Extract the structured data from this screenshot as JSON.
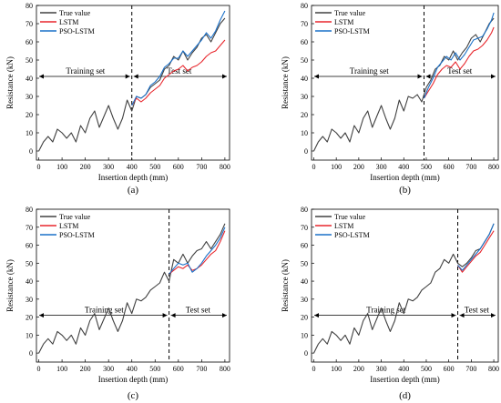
{
  "chart_data": [
    {
      "type": "line",
      "panel_label": "(a)",
      "xlabel": "Insertion depth (mm)",
      "ylabel": "Resistance (kN)",
      "xlim": [
        -10,
        820
      ],
      "ylim": [
        -5,
        80
      ],
      "xticks": [
        "0",
        "100",
        "200",
        "300",
        "400",
        "500",
        "600",
        "700",
        "800"
      ],
      "yticks": [
        "0",
        "10",
        "20",
        "30",
        "40",
        "50",
        "60",
        "70",
        "80"
      ],
      "split_x": 400,
      "annotations": {
        "train": "Training set",
        "test": "Test set",
        "arrow_y": 41
      },
      "legend": [
        "True value",
        "LSTM",
        "PSO-LSTM"
      ],
      "series": [
        {
          "name": "True value",
          "color": "#404040",
          "x": [
            0,
            20,
            40,
            60,
            80,
            100,
            120,
            140,
            160,
            180,
            200,
            220,
            240,
            260,
            280,
            300,
            320,
            340,
            360,
            380,
            400,
            420,
            440,
            460,
            480,
            500,
            520,
            540,
            560,
            580,
            600,
            620,
            640,
            660,
            680,
            700,
            720,
            740,
            760,
            780,
            800
          ],
          "y": [
            0,
            5,
            8,
            5,
            12,
            10,
            7,
            10,
            5,
            14,
            10,
            18,
            22,
            13,
            19,
            25,
            18,
            12,
            18,
            28,
            22,
            30,
            29,
            31,
            35,
            37,
            39,
            45,
            47,
            52,
            50,
            55,
            50,
            54,
            57,
            62,
            64,
            60,
            65,
            70,
            73
          ]
        },
        {
          "name": "LSTM",
          "color": "#e8272d",
          "x": [
            400,
            420,
            440,
            460,
            480,
            500,
            520,
            540,
            560,
            580,
            600,
            620,
            640,
            660,
            680,
            700,
            720,
            740,
            760,
            780,
            800
          ],
          "y": [
            25,
            29,
            27,
            29,
            32,
            34,
            36,
            40,
            42,
            44,
            45,
            47,
            44,
            46,
            47,
            49,
            52,
            54,
            55,
            58,
            61
          ]
        },
        {
          "name": "PSO-LSTM",
          "color": "#1a70c8",
          "x": [
            400,
            420,
            440,
            460,
            480,
            500,
            520,
            540,
            560,
            580,
            600,
            620,
            640,
            660,
            680,
            700,
            720,
            740,
            760,
            780,
            800
          ],
          "y": [
            25,
            30,
            29,
            31,
            36,
            38,
            41,
            46,
            48,
            51,
            51,
            55,
            52,
            55,
            58,
            61,
            65,
            62,
            66,
            72,
            77
          ]
        }
      ]
    },
    {
      "type": "line",
      "panel_label": "(b)",
      "xlabel": "Insertion depth (mm)",
      "ylabel": "Resistance (kN)",
      "xlim": [
        -10,
        820
      ],
      "ylim": [
        -5,
        80
      ],
      "xticks": [
        "0",
        "100",
        "200",
        "300",
        "400",
        "500",
        "600",
        "700",
        "800"
      ],
      "yticks": [
        "0",
        "10",
        "20",
        "30",
        "40",
        "50",
        "60",
        "70",
        "80"
      ],
      "split_x": 490,
      "annotations": {
        "train": "Training set",
        "test": "Test set",
        "arrow_y": 41
      },
      "legend": [
        "True value",
        "LSTM",
        "PSO-LSTM"
      ],
      "series": [
        {
          "name": "True value",
          "color": "#404040",
          "x": [
            0,
            20,
            40,
            60,
            80,
            100,
            120,
            140,
            160,
            180,
            200,
            220,
            240,
            260,
            280,
            300,
            320,
            340,
            360,
            380,
            400,
            420,
            440,
            460,
            480,
            500,
            520,
            540,
            560,
            580,
            600,
            620,
            640,
            660,
            680,
            700,
            720,
            740,
            760,
            780,
            800
          ],
          "y": [
            0,
            5,
            8,
            5,
            12,
            10,
            7,
            10,
            5,
            14,
            10,
            18,
            22,
            13,
            19,
            25,
            18,
            12,
            18,
            28,
            22,
            30,
            29,
            31,
            27,
            35,
            39,
            45,
            47,
            52,
            50,
            55,
            50,
            54,
            57,
            62,
            64,
            60,
            65,
            70,
            73
          ]
        },
        {
          "name": "LSTM",
          "color": "#e8272d",
          "x": [
            490,
            510,
            530,
            550,
            570,
            590,
            610,
            630,
            650,
            670,
            690,
            710,
            730,
            750,
            770,
            790,
            800
          ],
          "y": [
            29,
            33,
            37,
            42,
            45,
            47,
            46,
            49,
            45,
            48,
            52,
            55,
            56,
            58,
            61,
            65,
            68
          ]
        },
        {
          "name": "PSO-LSTM",
          "color": "#1a70c8",
          "x": [
            490,
            510,
            530,
            550,
            570,
            590,
            610,
            630,
            650,
            670,
            690,
            710,
            730,
            750,
            770,
            790,
            800
          ],
          "y": [
            29,
            35,
            40,
            46,
            49,
            52,
            50,
            54,
            50,
            53,
            57,
            61,
            62,
            63,
            67,
            72,
            76
          ]
        }
      ]
    },
    {
      "type": "line",
      "panel_label": "(c)",
      "xlabel": "Insertion depth (mm)",
      "ylabel": "Resistance (kN)",
      "xlim": [
        -10,
        820
      ],
      "ylim": [
        -5,
        80
      ],
      "xticks": [
        "0",
        "100",
        "200",
        "300",
        "400",
        "500",
        "600",
        "700",
        "800"
      ],
      "yticks": [
        "0",
        "10",
        "20",
        "30",
        "40",
        "50",
        "60",
        "70",
        "80"
      ],
      "split_x": 560,
      "annotations": {
        "train": "Training set",
        "test": "Test set",
        "arrow_y": 21
      },
      "legend": [
        "True value",
        "LSTM",
        "PSO-LSTM"
      ],
      "series": [
        {
          "name": "True value",
          "color": "#404040",
          "x": [
            0,
            20,
            40,
            60,
            80,
            100,
            120,
            140,
            160,
            180,
            200,
            220,
            240,
            260,
            280,
            300,
            320,
            340,
            360,
            380,
            400,
            420,
            440,
            460,
            480,
            500,
            520,
            540,
            560,
            580,
            600,
            620,
            640,
            660,
            680,
            700,
            720,
            740,
            760,
            780,
            800
          ],
          "y": [
            0,
            5,
            8,
            5,
            12,
            10,
            7,
            10,
            5,
            14,
            10,
            18,
            22,
            13,
            19,
            25,
            18,
            12,
            18,
            28,
            22,
            30,
            29,
            31,
            35,
            37,
            39,
            45,
            40,
            52,
            50,
            55,
            50,
            54,
            57,
            58,
            62,
            58,
            62,
            66,
            72
          ]
        },
        {
          "name": "LSTM",
          "color": "#e8272d",
          "x": [
            560,
            580,
            600,
            620,
            640,
            660,
            680,
            700,
            720,
            740,
            760,
            780,
            800
          ],
          "y": [
            44,
            46,
            48,
            47,
            49,
            46,
            47,
            49,
            52,
            55,
            57,
            62,
            68
          ]
        },
        {
          "name": "PSO-LSTM",
          "color": "#1a70c8",
          "x": [
            560,
            580,
            600,
            620,
            640,
            660,
            680,
            700,
            720,
            740,
            760,
            780,
            800
          ],
          "y": [
            44,
            47,
            50,
            49,
            50,
            45,
            47,
            50,
            54,
            57,
            60,
            64,
            70
          ]
        }
      ]
    },
    {
      "type": "line",
      "panel_label": "(d)",
      "xlabel": "Insertion depth (mm)",
      "ylabel": "Resistance (kN)",
      "xlim": [
        -10,
        820
      ],
      "ylim": [
        -5,
        80
      ],
      "xticks": [
        "0",
        "100",
        "200",
        "300",
        "400",
        "500",
        "600",
        "700",
        "800"
      ],
      "yticks": [
        "0",
        "10",
        "20",
        "30",
        "40",
        "50",
        "60",
        "70",
        "80"
      ],
      "split_x": 640,
      "annotations": {
        "train": "Training set",
        "test": "Test set",
        "arrow_y": 21
      },
      "legend": [
        "True value",
        "LSTM",
        "PSO-LSTM"
      ],
      "series": [
        {
          "name": "True value",
          "color": "#404040",
          "x": [
            0,
            20,
            40,
            60,
            80,
            100,
            120,
            140,
            160,
            180,
            200,
            220,
            240,
            260,
            280,
            300,
            320,
            340,
            360,
            380,
            400,
            420,
            440,
            460,
            480,
            500,
            520,
            540,
            560,
            580,
            600,
            620,
            640,
            660,
            680,
            700,
            720,
            740,
            760,
            780,
            800
          ],
          "y": [
            0,
            5,
            8,
            5,
            12,
            10,
            7,
            10,
            5,
            14,
            10,
            18,
            22,
            13,
            19,
            25,
            18,
            12,
            18,
            28,
            22,
            30,
            29,
            31,
            35,
            37,
            39,
            45,
            47,
            52,
            50,
            55,
            50,
            48,
            50,
            53,
            57,
            58,
            62,
            66,
            72
          ]
        },
        {
          "name": "LSTM",
          "color": "#e8272d",
          "x": [
            640,
            660,
            680,
            700,
            720,
            740,
            760,
            780,
            800
          ],
          "y": [
            49,
            45,
            48,
            51,
            54,
            56,
            60,
            64,
            68
          ]
        },
        {
          "name": "PSO-LSTM",
          "color": "#1a70c8",
          "x": [
            640,
            660,
            680,
            700,
            720,
            740,
            760,
            780,
            800
          ],
          "y": [
            49,
            46,
            49,
            52,
            55,
            58,
            62,
            66,
            72
          ]
        }
      ]
    }
  ]
}
